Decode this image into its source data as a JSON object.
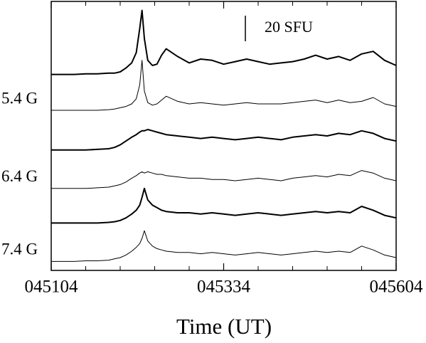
{
  "chart_data": {
    "type": "line",
    "xlabel": "Time (UT)",
    "x": [
      0,
      10,
      20,
      30,
      40,
      50,
      55,
      60,
      65,
      70,
      74,
      77,
      79,
      81,
      84,
      88,
      92,
      96,
      100,
      110,
      120,
      130,
      140,
      150,
      160,
      170,
      180,
      190,
      200,
      210,
      220,
      230,
      240,
      250,
      260,
      270,
      280,
      290,
      300
    ],
    "xlim": [
      0,
      300
    ],
    "xticks": [
      {
        "value": 0,
        "label": "045104"
      },
      {
        "value": 150,
        "label": "045334"
      },
      {
        "value": 300,
        "label": "045604"
      }
    ],
    "minor_xticks": [
      30,
      60,
      90,
      120,
      180,
      210,
      240,
      270
    ],
    "ylim": [
      0,
      210
    ],
    "scale_bar": {
      "value": 20,
      "label": "20 SFU"
    },
    "series": [
      {
        "name": null,
        "color": "#000000",
        "line_width": 2,
        "values": [
          153,
          153,
          153,
          153.5,
          153.5,
          154,
          154,
          155,
          158,
          162,
          170,
          189,
          203,
          181,
          164,
          160,
          161,
          168,
          173,
          167,
          162,
          165,
          164,
          161,
          163,
          165,
          163,
          161,
          162,
          163,
          165,
          168,
          165,
          167,
          164,
          169,
          171,
          164,
          160
        ]
      },
      {
        "name": "5.4 G",
        "color": "#000000",
        "line_width": 1,
        "values": [
          125,
          125,
          125,
          125,
          125,
          125.5,
          126,
          127,
          128,
          130,
          134,
          145,
          164,
          140,
          131,
          129,
          130,
          133,
          136,
          132,
          130,
          131,
          130,
          129,
          130,
          131,
          130,
          130,
          130,
          131,
          132,
          133,
          131,
          133,
          131,
          132,
          135,
          130,
          128
        ]
      },
      {
        "name": null,
        "color": "#000000",
        "line_width": 2,
        "values": [
          94,
          94,
          94,
          94,
          94.5,
          95,
          96,
          98,
          101,
          104,
          106,
          108,
          109,
          109,
          110,
          109,
          108,
          107,
          106,
          105,
          104,
          103,
          104,
          103,
          102,
          103,
          104,
          103,
          102,
          104,
          105,
          106,
          105,
          107,
          106,
          109,
          107,
          103,
          101
        ]
      },
      {
        "name": "6.4 G",
        "color": "#000000",
        "line_width": 1,
        "values": [
          64,
          64,
          64,
          64,
          64.5,
          65,
          66,
          67,
          69,
          72,
          74,
          76,
          77,
          76,
          77,
          76,
          75,
          75,
          74,
          73,
          72,
          72,
          71,
          71,
          70,
          71,
          72,
          71,
          70,
          72,
          73,
          74,
          73,
          75,
          74,
          78,
          76,
          72,
          70
        ]
      },
      {
        "name": null,
        "color": "#000000",
        "line_width": 2,
        "values": [
          37,
          37,
          37,
          37,
          37,
          37.5,
          38,
          39,
          41,
          44,
          47,
          51,
          57,
          64,
          55,
          51,
          49,
          47,
          46,
          45,
          45,
          44,
          45,
          44,
          43,
          44,
          45,
          44,
          43,
          44,
          45,
          46,
          45,
          46,
          45,
          50,
          47,
          43,
          41
        ]
      },
      {
        "name": "7.4 G",
        "color": "#000000",
        "line_width": 1,
        "values": [
          7,
          7,
          7,
          7.5,
          7.5,
          8,
          9,
          10,
          12,
          15,
          18,
          21,
          25,
          31,
          23,
          19,
          17,
          16,
          15,
          14,
          14,
          13,
          14,
          13,
          12,
          13,
          14,
          13,
          12,
          13,
          14,
          15,
          14,
          15,
          14,
          19,
          16,
          12,
          10
        ]
      }
    ]
  }
}
